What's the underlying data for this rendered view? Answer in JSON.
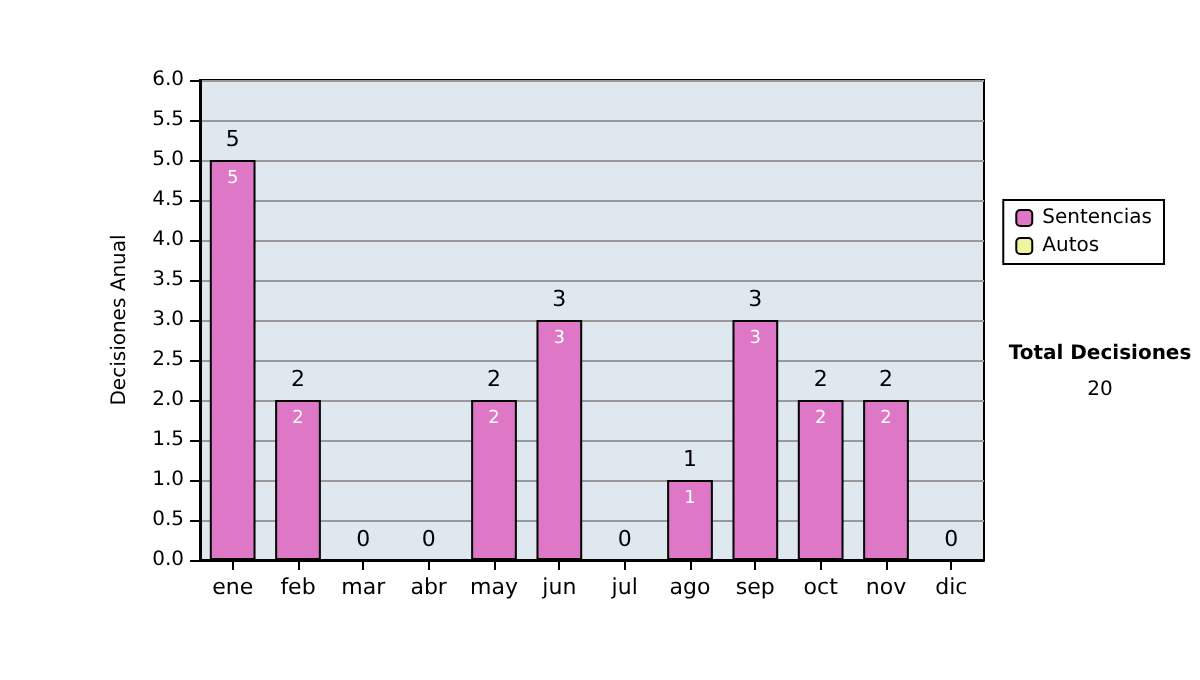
{
  "chart_data": {
    "type": "bar",
    "ylabel": "Decisiones Anual",
    "categories": [
      "ene",
      "feb",
      "mar",
      "abr",
      "may",
      "jun",
      "jul",
      "ago",
      "sep",
      "oct",
      "nov",
      "dic"
    ],
    "series": [
      {
        "name": "Sentencias",
        "color": "#dd77c6",
        "values": [
          5,
          2,
          0,
          0,
          2,
          3,
          0,
          1,
          3,
          2,
          2,
          0
        ],
        "value_labels": [
          "5",
          "2",
          null,
          null,
          "2",
          "3",
          null,
          "1",
          "3",
          "2",
          "2",
          null
        ]
      },
      {
        "name": "Autos",
        "color": "#eef5a0",
        "values": [
          0,
          0,
          0,
          0,
          0,
          0,
          0,
          0,
          0,
          0,
          0,
          0
        ]
      }
    ],
    "stacked": true,
    "totals": [
      "5",
      "2",
      "0",
      "0",
      "2",
      "3",
      "0",
      "1",
      "3",
      "2",
      "2",
      "0"
    ],
    "ylim": [
      0,
      6
    ],
    "yticks": [
      {
        "value": 0,
        "label": "0.0"
      },
      {
        "value": 0.5,
        "label": "0.5"
      },
      {
        "value": 1,
        "label": "1.0"
      },
      {
        "value": 1.5,
        "label": "1.5"
      },
      {
        "value": 2,
        "label": "2.0"
      },
      {
        "value": 2.5,
        "label": "2.5"
      },
      {
        "value": 3,
        "label": "3.0"
      },
      {
        "value": 3.5,
        "label": "3.5"
      },
      {
        "value": 4,
        "label": "4.0"
      },
      {
        "value": 4.5,
        "label": "4.5"
      },
      {
        "value": 5,
        "label": "5.0"
      },
      {
        "value": 5.5,
        "label": "5.5"
      },
      {
        "value": 6,
        "label": "6.0"
      }
    ],
    "grid": "y",
    "legend": "right",
    "annotations": [
      "Total Decisiones",
      "20"
    ]
  }
}
